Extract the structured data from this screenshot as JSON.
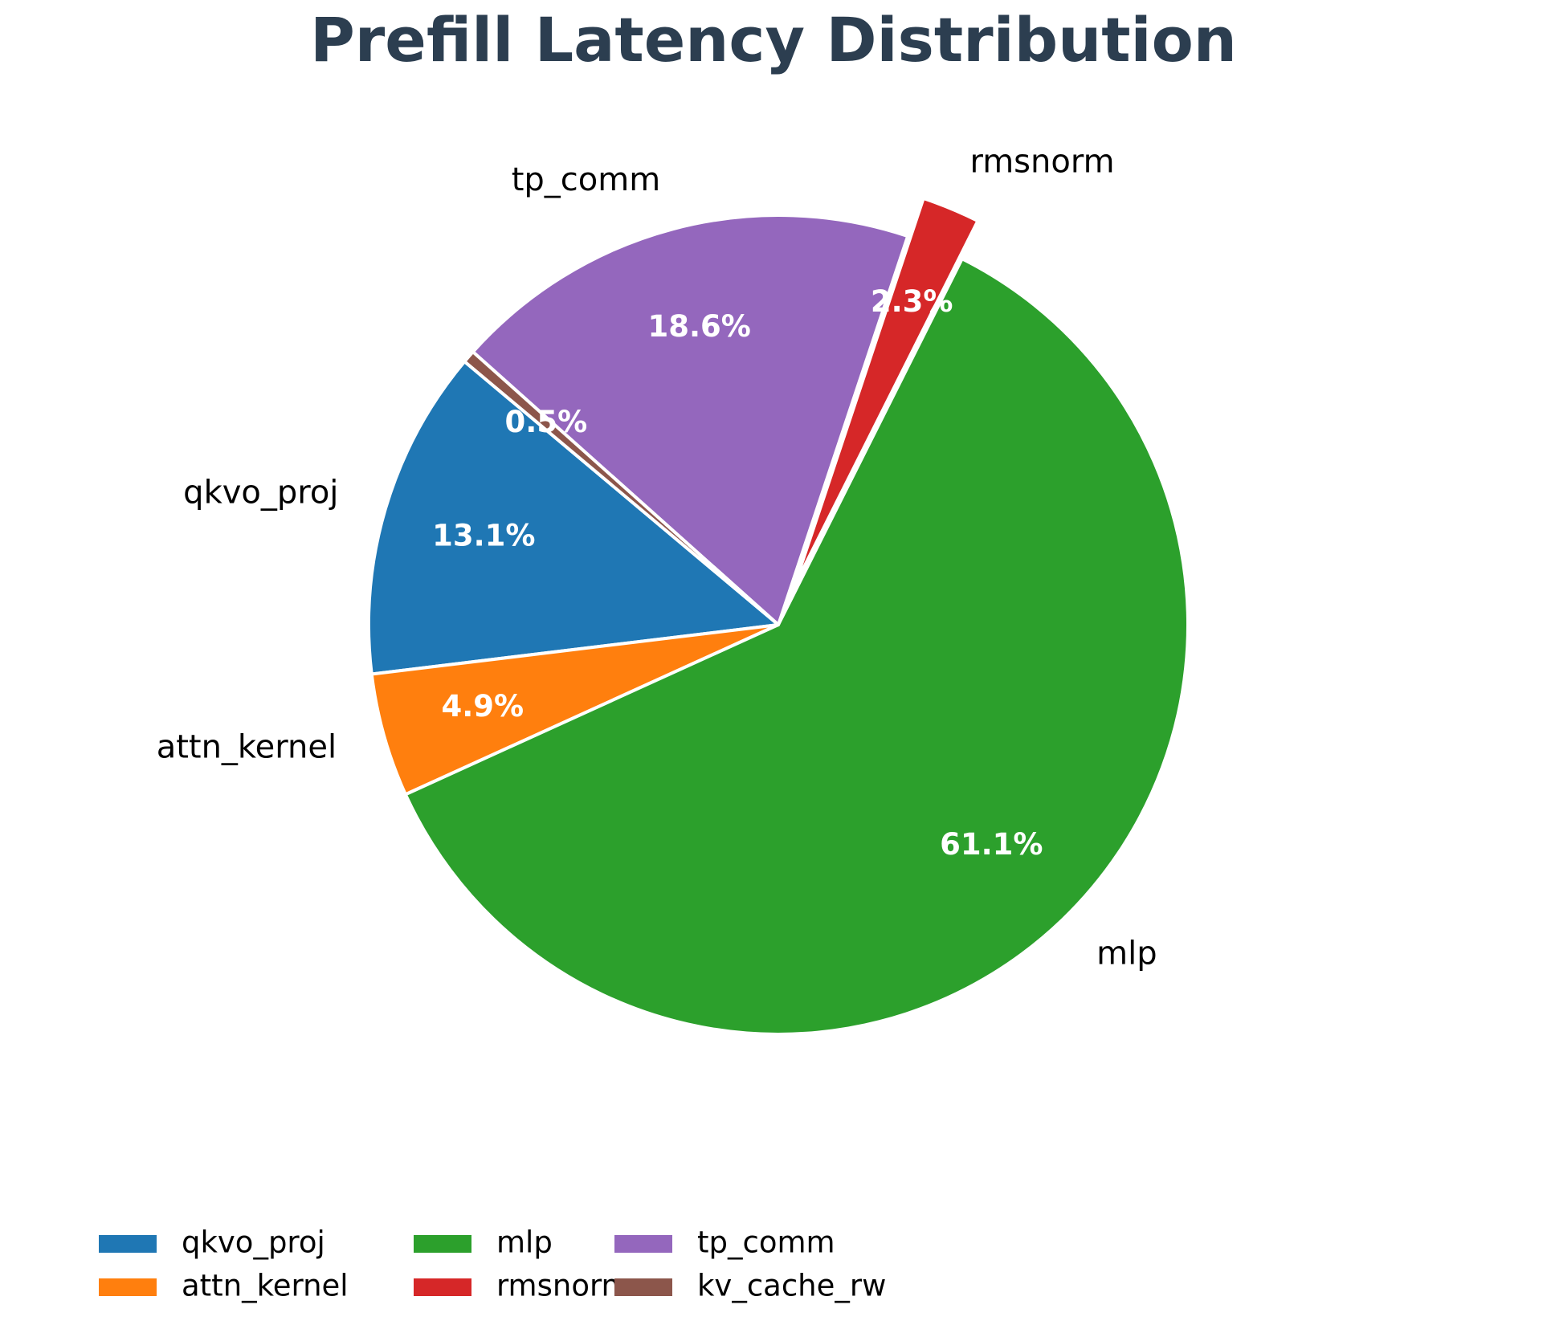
{
  "chart_data": {
    "type": "pie",
    "title": "Prefill Latency Distribution",
    "slices": [
      {
        "label": "qkvo_proj",
        "value": 13.1,
        "pct_label": "13.1%",
        "color": "#1f77b4",
        "explode": false
      },
      {
        "label": "attn_kernel",
        "value": 4.9,
        "pct_label": "4.9%",
        "color": "#ff7f0e",
        "explode": false
      },
      {
        "label": "mlp",
        "value": 61.1,
        "pct_label": "61.1%",
        "color": "#2ca02c",
        "explode": false
      },
      {
        "label": "rmsnorm",
        "value": 2.3,
        "pct_label": "2.3%",
        "color": "#d62728",
        "explode": true
      },
      {
        "label": "tp_comm",
        "value": 18.6,
        "pct_label": "18.6%",
        "color": "#9467bd",
        "explode": false
      },
      {
        "label": "kv_cache_rw",
        "value": 0.5,
        "pct_label": "0.5%",
        "color": "#8c564b",
        "explode": false
      }
    ],
    "start_angle_deg": 140,
    "direction": "counterclockwise",
    "legend": {
      "placement": "bottom",
      "entries": [
        "qkvo_proj",
        "attn_kernel",
        "mlp",
        "rmsnorm",
        "tp_comm",
        "kv_cache_rw"
      ]
    }
  }
}
